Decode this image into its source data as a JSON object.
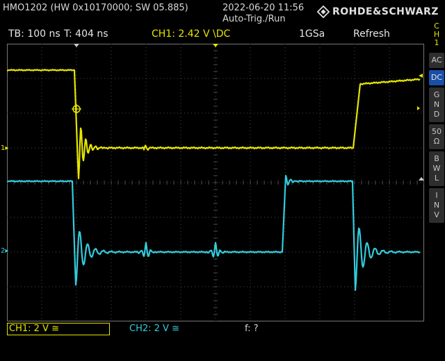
{
  "header": {
    "model": "HMO1202 (HW 0x10170000; SW 05.885)",
    "datetime": "2022-06-20 11:56",
    "trigger_mode": "Auto-Trig./Run",
    "brand": "ROHDE&SCHWARZ"
  },
  "status": {
    "timebase": "TB: 100 ns",
    "trigger_time": "T: 404 ns",
    "ch1_trigger": "CH1: 2.42 V \\DC",
    "sample_rate": "1GSa",
    "acquisition": "Refresh"
  },
  "channel_markers": {
    "ch1": "1",
    "ch2": "2"
  },
  "right_panel": {
    "channel": [
      "C",
      "H",
      "1"
    ],
    "buttons": [
      {
        "name": "ac",
        "lines": [
          "AC"
        ]
      },
      {
        "name": "dc",
        "lines": [
          "DC"
        ]
      },
      {
        "name": "gnd",
        "lines": [
          "G",
          "N",
          "D"
        ]
      },
      {
        "name": "50ohm",
        "lines": [
          "50",
          "Ω"
        ]
      },
      {
        "name": "bwl",
        "lines": [
          "B",
          "W",
          "L"
        ]
      },
      {
        "name": "inv",
        "lines": [
          "I",
          "N",
          "V"
        ]
      }
    ]
  },
  "footer": {
    "ch1": "CH1: 2 V ≅",
    "ch2": "CH2: 2 V ≅",
    "freq": "f: ?"
  },
  "colors": {
    "ch1": "#e6e600",
    "ch2": "#33ccdd",
    "grid": "#4a4a4a",
    "dc_active": "#1a4fa8"
  }
}
